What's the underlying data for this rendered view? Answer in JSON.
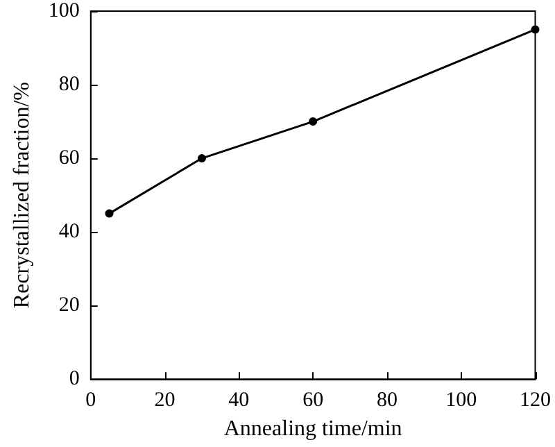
{
  "chart_data": {
    "type": "line",
    "xlabel": "Annealing time/min",
    "ylabel": "Recrystallized fraction/%",
    "x": [
      5,
      30,
      60,
      120
    ],
    "series": [
      {
        "color": "#000000",
        "values": [
          45,
          60,
          70,
          95
        ]
      }
    ],
    "xlim": [
      0,
      120
    ],
    "xticks": [
      0,
      20,
      40,
      60,
      80,
      100,
      120
    ],
    "ylim": [
      0,
      100
    ],
    "yticks": [
      0,
      20,
      40,
      60,
      80,
      100
    ],
    "grid": false,
    "marker": "circle",
    "line_style": "solid"
  }
}
